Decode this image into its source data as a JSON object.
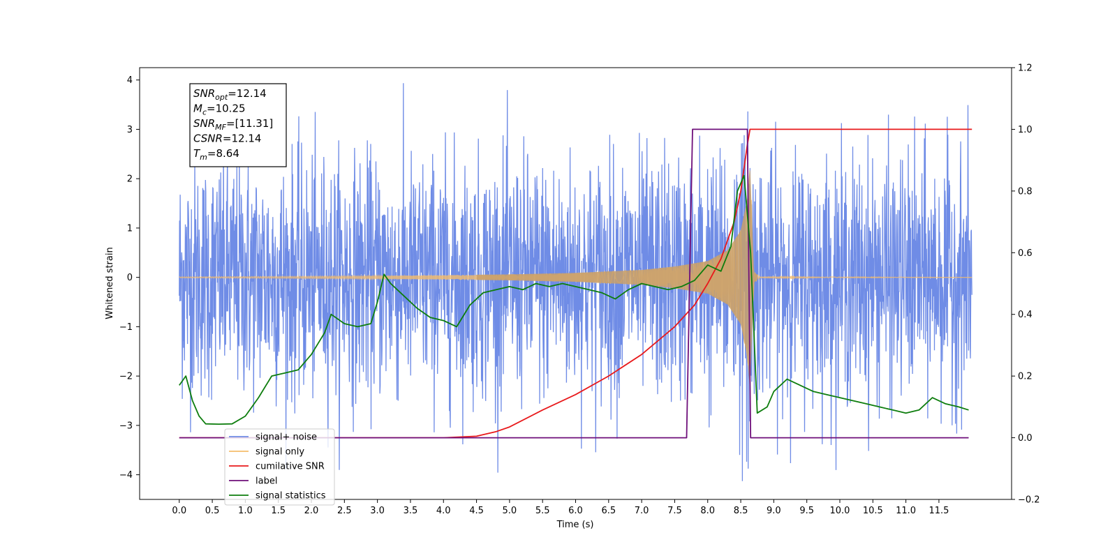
{
  "chart_data": {
    "type": "line",
    "xlabel": "Time (s)",
    "ylabel": "Whitened strain",
    "xlim": [
      -0.6,
      12.6
    ],
    "ylim": [
      -4.5,
      4.25
    ],
    "y2lim": [
      -0.2,
      1.2
    ],
    "x_ticks": [
      0.0,
      0.5,
      1.0,
      1.5,
      2.0,
      2.5,
      3.0,
      3.5,
      4.0,
      4.5,
      5.0,
      5.5,
      6.0,
      6.5,
      7.0,
      7.5,
      8.0,
      8.5,
      9.0,
      9.5,
      10.0,
      10.5,
      11.0,
      11.5
    ],
    "x_tick_labels": [
      "0.0",
      "0.5",
      "1.0",
      "1.5",
      "2.0",
      "2.5",
      "3.0",
      "3.5",
      "4.0",
      "4.5",
      "5.0",
      "5.5",
      "6.0",
      "6.5",
      "7.0",
      "7.5",
      "8.0",
      "8.5",
      "9.0",
      "9.5",
      "10.0",
      "10.5",
      "11.0",
      "11.5"
    ],
    "y_ticks": [
      -4,
      -3,
      -2,
      -1,
      0,
      1,
      2,
      3,
      4
    ],
    "y_tick_labels": [
      "−4",
      "−3",
      "−2",
      "−1",
      "0",
      "1",
      "2",
      "3",
      "4"
    ],
    "y2_ticks": [
      -0.2,
      0.0,
      0.2,
      0.4,
      0.6,
      0.8,
      1.0,
      1.2
    ],
    "y2_tick_labels": [
      "−0.2",
      "0.0",
      "0.2",
      "0.4",
      "0.6",
      "0.8",
      "1.0",
      "1.2"
    ],
    "info_box": [
      {
        "base": "SNR",
        "sub": "opt",
        "rest": "=12.14"
      },
      {
        "base": "M",
        "sub": "c",
        "rest": "=10.25"
      },
      {
        "base": "SNR",
        "sub": "MF",
        "rest": "=[11.31]"
      },
      {
        "base": "CSNR",
        "sub": "",
        "rest": "=12.14"
      },
      {
        "base": "T",
        "sub": "m",
        "rest": "=8.64"
      }
    ],
    "legend_position": "lower-left",
    "series": [
      {
        "name": "signal+ noise",
        "axis": "left",
        "color": "#6f8ce6",
        "description_of_values": "noise, amplitude ~1.2 std, spikes to ±3.9, x from 0.0 to 12.0",
        "x_range": [
          0.0,
          12.0
        ],
        "noise_std": 1.2,
        "spike_max": 3.9
      },
      {
        "name": "signal only",
        "axis": "left",
        "color": "#f5bd6b",
        "x_range": [
          0.0,
          12.0
        ],
        "chirp_merger_time": 8.64,
        "envelope": [
          [
            0.0,
            0.01
          ],
          [
            3.0,
            0.03
          ],
          [
            5.0,
            0.06
          ],
          [
            6.0,
            0.09
          ],
          [
            7.0,
            0.15
          ],
          [
            7.5,
            0.22
          ],
          [
            8.0,
            0.33
          ],
          [
            8.3,
            0.55
          ],
          [
            8.5,
            0.95
          ],
          [
            8.6,
            1.6
          ],
          [
            8.64,
            2.3
          ],
          [
            8.7,
            0.1
          ],
          [
            8.8,
            0.01
          ],
          [
            12.0,
            0.0
          ]
        ]
      },
      {
        "name": "cumilative SNR",
        "axis": "right",
        "color": "#e8191b",
        "points": [
          [
            0.0,
            0.0
          ],
          [
            3.0,
            0.0
          ],
          [
            4.0,
            0.0
          ],
          [
            4.5,
            0.005
          ],
          [
            4.8,
            0.02
          ],
          [
            5.0,
            0.035
          ],
          [
            5.5,
            0.09
          ],
          [
            6.0,
            0.14
          ],
          [
            6.5,
            0.2
          ],
          [
            7.0,
            0.27
          ],
          [
            7.5,
            0.36
          ],
          [
            7.8,
            0.43
          ],
          [
            8.0,
            0.5
          ],
          [
            8.2,
            0.58
          ],
          [
            8.4,
            0.7
          ],
          [
            8.5,
            0.8
          ],
          [
            8.6,
            0.95
          ],
          [
            8.64,
            1.0
          ],
          [
            12.0,
            1.0
          ]
        ]
      },
      {
        "name": "label",
        "axis": "right",
        "color": "#6e0f7a",
        "points": [
          [
            0.0,
            0.0
          ],
          [
            7.68,
            0.0
          ],
          [
            7.77,
            1.0
          ],
          [
            8.6,
            1.0
          ],
          [
            8.65,
            0.0
          ],
          [
            11.95,
            0.0
          ]
        ]
      },
      {
        "name": "signal statistics",
        "axis": "right",
        "color": "#0d7d0d",
        "points": [
          [
            0.0,
            0.17
          ],
          [
            0.1,
            0.2
          ],
          [
            0.2,
            0.12
          ],
          [
            0.3,
            0.07
          ],
          [
            0.4,
            0.045
          ],
          [
            0.6,
            0.044
          ],
          [
            0.8,
            0.045
          ],
          [
            1.0,
            0.07
          ],
          [
            1.2,
            0.13
          ],
          [
            1.4,
            0.2
          ],
          [
            1.6,
            0.21
          ],
          [
            1.8,
            0.22
          ],
          [
            2.0,
            0.27
          ],
          [
            2.2,
            0.34
          ],
          [
            2.3,
            0.4
          ],
          [
            2.5,
            0.37
          ],
          [
            2.7,
            0.36
          ],
          [
            2.9,
            0.37
          ],
          [
            3.0,
            0.44
          ],
          [
            3.1,
            0.53
          ],
          [
            3.2,
            0.5
          ],
          [
            3.4,
            0.46
          ],
          [
            3.6,
            0.42
          ],
          [
            3.8,
            0.39
          ],
          [
            4.0,
            0.38
          ],
          [
            4.2,
            0.36
          ],
          [
            4.4,
            0.43
          ],
          [
            4.6,
            0.47
          ],
          [
            4.8,
            0.48
          ],
          [
            5.0,
            0.49
          ],
          [
            5.2,
            0.48
          ],
          [
            5.4,
            0.5
          ],
          [
            5.6,
            0.49
          ],
          [
            5.8,
            0.5
          ],
          [
            6.0,
            0.49
          ],
          [
            6.2,
            0.48
          ],
          [
            6.4,
            0.47
          ],
          [
            6.6,
            0.45
          ],
          [
            6.8,
            0.48
          ],
          [
            7.0,
            0.5
          ],
          [
            7.2,
            0.49
          ],
          [
            7.4,
            0.48
          ],
          [
            7.6,
            0.49
          ],
          [
            7.8,
            0.51
          ],
          [
            8.0,
            0.56
          ],
          [
            8.2,
            0.54
          ],
          [
            8.35,
            0.62
          ],
          [
            8.45,
            0.8
          ],
          [
            8.55,
            0.85
          ],
          [
            8.65,
            0.6
          ],
          [
            8.75,
            0.08
          ],
          [
            8.9,
            0.1
          ],
          [
            9.0,
            0.15
          ],
          [
            9.2,
            0.19
          ],
          [
            9.4,
            0.17
          ],
          [
            9.6,
            0.15
          ],
          [
            9.8,
            0.14
          ],
          [
            10.0,
            0.13
          ],
          [
            10.2,
            0.12
          ],
          [
            10.4,
            0.11
          ],
          [
            10.6,
            0.1
          ],
          [
            10.8,
            0.09
          ],
          [
            11.0,
            0.08
          ],
          [
            11.2,
            0.09
          ],
          [
            11.4,
            0.13
          ],
          [
            11.6,
            0.11
          ],
          [
            11.8,
            0.1
          ],
          [
            11.95,
            0.09
          ]
        ]
      }
    ],
    "hidden_legend_overlap_texts": [
      "signal only",
      "signal statistics"
    ]
  }
}
